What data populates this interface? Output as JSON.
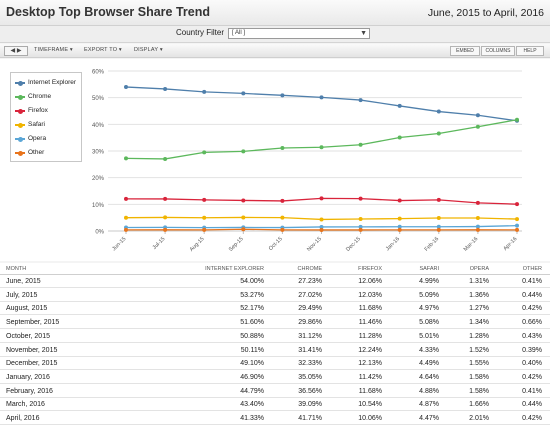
{
  "header": {
    "title": "Desktop Top Browser Share Trend",
    "date_range": "June, 2015 to April, 2016"
  },
  "filter": {
    "label": "Country Filter",
    "value": "[ All ]"
  },
  "toolbar": {
    "nav": "◀ ▶",
    "timeframe": "TIMEFRAME ▾",
    "export": "EXPORT TO ▾",
    "display": "DISPLAY ▾",
    "embed": "EMBED",
    "columns": "COLUMNS",
    "help": "HELP"
  },
  "chart_data": {
    "type": "line",
    "categories": [
      "Jun-15",
      "Jul-15",
      "Aug-15",
      "Sep-15",
      "Oct-15",
      "Nov-15",
      "Dec-15",
      "Jan-16",
      "Feb-16",
      "Mar-16",
      "Apr-16"
    ],
    "yticks": [
      "60%",
      "50%",
      "40%",
      "30%",
      "20%",
      "10%",
      "0%"
    ],
    "ylim": [
      0,
      60
    ],
    "grid": true,
    "legend_position": "top-left",
    "series": [
      {
        "name": "Internet Explorer",
        "color": "#4f7fab",
        "values": [
          54.0,
          53.27,
          52.17,
          51.6,
          50.88,
          50.11,
          49.1,
          46.9,
          44.79,
          43.4,
          41.33
        ]
      },
      {
        "name": "Chrome",
        "color": "#5cb85c",
        "values": [
          27.23,
          27.02,
          29.49,
          29.86,
          31.12,
          31.41,
          32.33,
          35.05,
          36.56,
          39.09,
          41.71
        ]
      },
      {
        "name": "Firefox",
        "color": "#d9243b",
        "values": [
          12.06,
          12.03,
          11.68,
          11.46,
          11.28,
          12.24,
          12.13,
          11.42,
          11.68,
          10.54,
          10.06
        ]
      },
      {
        "name": "Safari",
        "color": "#f0b400",
        "values": [
          4.99,
          5.09,
          4.97,
          5.08,
          5.01,
          4.33,
          4.49,
          4.64,
          4.88,
          4.87,
          4.47
        ]
      },
      {
        "name": "Opera",
        "color": "#5ba6d6",
        "values": [
          1.31,
          1.36,
          1.27,
          1.34,
          1.28,
          1.52,
          1.55,
          1.58,
          1.58,
          1.66,
          2.01
        ]
      },
      {
        "name": "Other",
        "color": "#e8741c",
        "values": [
          0.41,
          0.44,
          0.42,
          0.66,
          0.43,
          0.39,
          0.4,
          0.42,
          0.41,
          0.44,
          0.42
        ]
      }
    ]
  },
  "table": {
    "headers": [
      "MONTH",
      "INTERNET EXPLORER",
      "CHROME",
      "FIREFOX",
      "SAFARI",
      "OPERA",
      "OTHER"
    ],
    "rows": [
      [
        "June, 2015",
        "54.00%",
        "27.23%",
        "12.06%",
        "4.99%",
        "1.31%",
        "0.41%"
      ],
      [
        "July, 2015",
        "53.27%",
        "27.02%",
        "12.03%",
        "5.09%",
        "1.36%",
        "0.44%"
      ],
      [
        "August, 2015",
        "52.17%",
        "29.49%",
        "11.68%",
        "4.97%",
        "1.27%",
        "0.42%"
      ],
      [
        "September, 2015",
        "51.60%",
        "29.86%",
        "11.46%",
        "5.08%",
        "1.34%",
        "0.66%"
      ],
      [
        "October, 2015",
        "50.88%",
        "31.12%",
        "11.28%",
        "5.01%",
        "1.28%",
        "0.43%"
      ],
      [
        "November, 2015",
        "50.11%",
        "31.41%",
        "12.24%",
        "4.33%",
        "1.52%",
        "0.39%"
      ],
      [
        "December, 2015",
        "49.10%",
        "32.33%",
        "12.13%",
        "4.49%",
        "1.55%",
        "0.40%"
      ],
      [
        "January, 2016",
        "46.90%",
        "35.05%",
        "11.42%",
        "4.64%",
        "1.58%",
        "0.42%"
      ],
      [
        "February, 2016",
        "44.79%",
        "36.56%",
        "11.68%",
        "4.88%",
        "1.58%",
        "0.41%"
      ],
      [
        "March, 2016",
        "43.40%",
        "39.09%",
        "10.54%",
        "4.87%",
        "1.66%",
        "0.44%"
      ],
      [
        "April, 2016",
        "41.33%",
        "41.71%",
        "10.06%",
        "4.47%",
        "2.01%",
        "0.42%"
      ]
    ]
  }
}
